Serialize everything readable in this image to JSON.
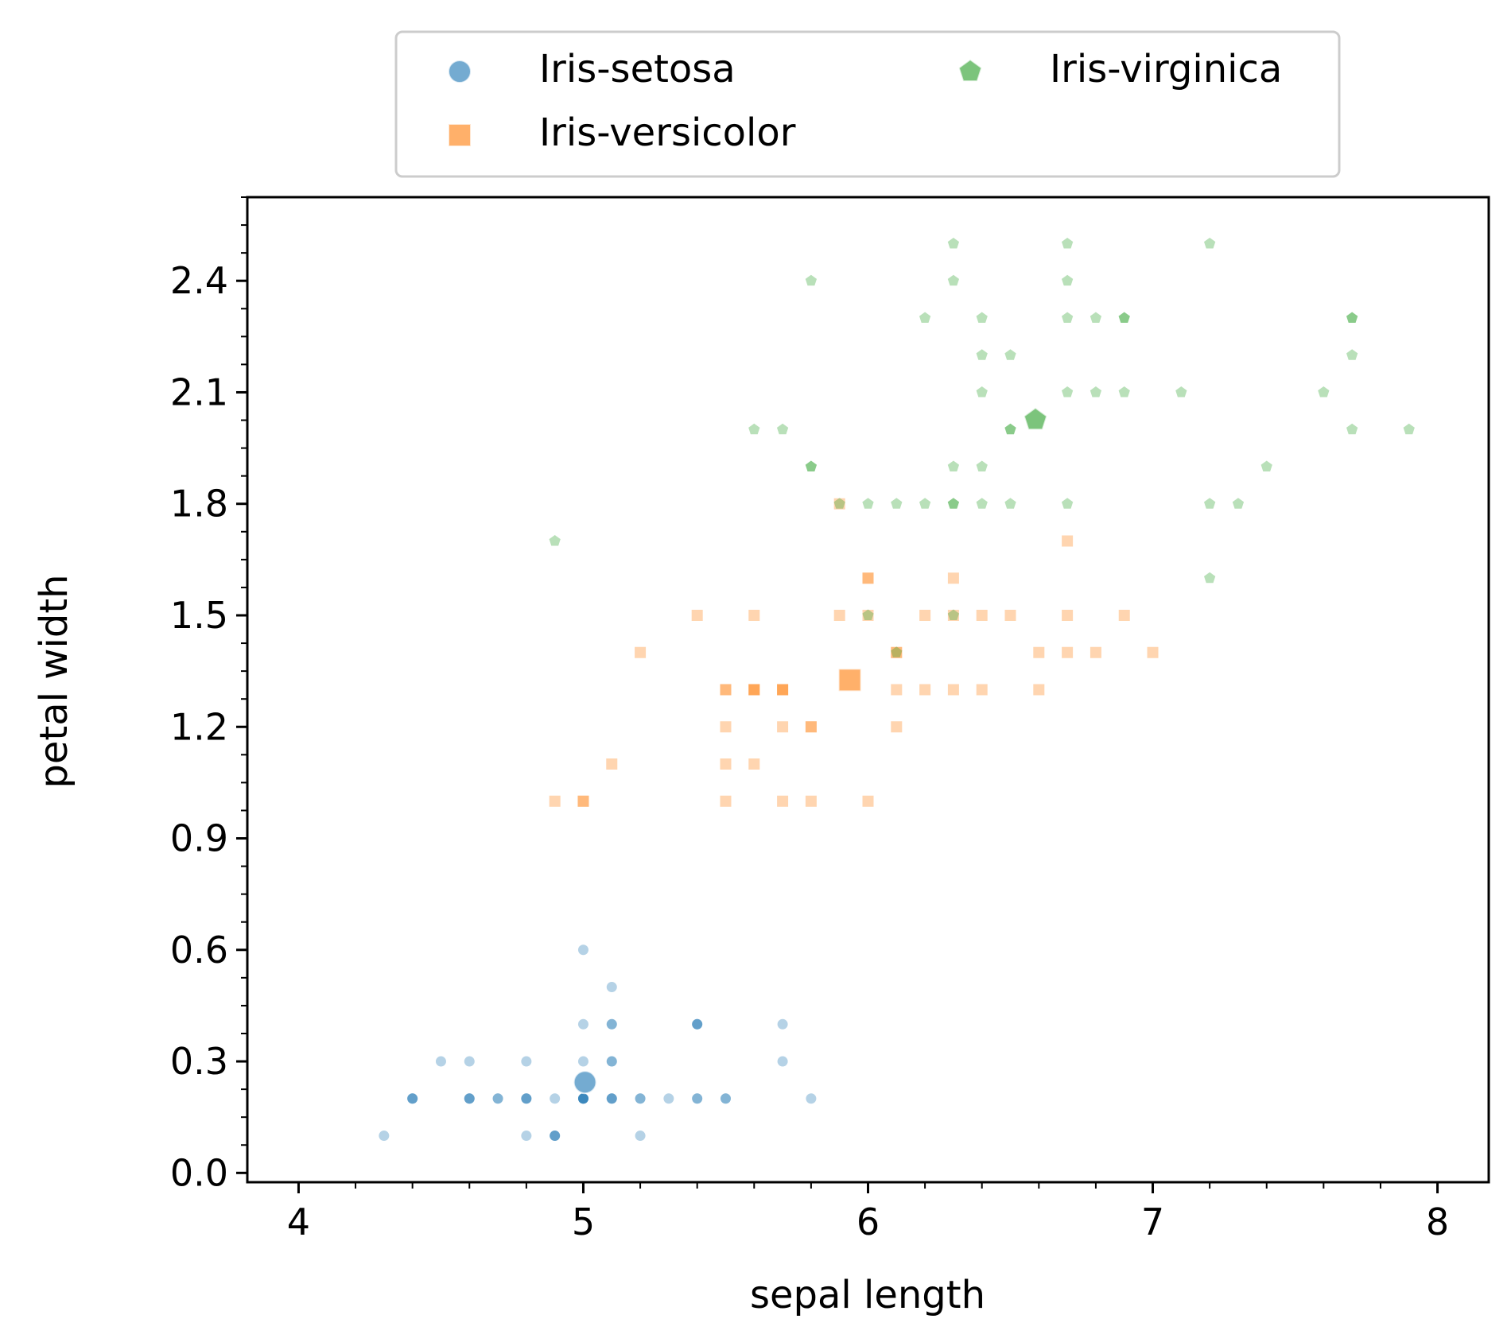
{
  "chart_data": {
    "type": "scatter",
    "title": "",
    "xlabel": "sepal length",
    "ylabel": "petal width",
    "xlim": [
      3.82,
      8.18
    ],
    "ylim": [
      -0.025,
      2.625
    ],
    "xticks": [
      4,
      5,
      6,
      7,
      8
    ],
    "xtick_labels": [
      "4",
      "5",
      "6",
      "7",
      "8"
    ],
    "yticks": [
      0.0,
      0.3,
      0.6,
      0.9,
      1.2,
      1.5,
      1.8,
      2.1,
      2.4
    ],
    "ytick_labels": [
      "0.0",
      "0.3",
      "0.6",
      "0.9",
      "1.2",
      "1.5",
      "1.8",
      "2.1",
      "2.4"
    ],
    "x_minor_step": 0.2,
    "y_minor_step": 0.075,
    "grid": false,
    "legend": {
      "placement": "top-center-outside",
      "columns": 2
    },
    "series": [
      {
        "name": "Iris-setosa",
        "color": "#1f77b4",
        "marker": "circle",
        "points": [
          [
            5.1,
            0.2
          ],
          [
            4.9,
            0.2
          ],
          [
            4.7,
            0.2
          ],
          [
            4.6,
            0.2
          ],
          [
            5.0,
            0.2
          ],
          [
            5.4,
            0.4
          ],
          [
            4.6,
            0.3
          ],
          [
            5.0,
            0.2
          ],
          [
            4.4,
            0.2
          ],
          [
            4.9,
            0.1
          ],
          [
            5.4,
            0.2
          ],
          [
            4.8,
            0.2
          ],
          [
            4.8,
            0.1
          ],
          [
            4.3,
            0.1
          ],
          [
            5.8,
            0.2
          ],
          [
            5.7,
            0.4
          ],
          [
            5.4,
            0.4
          ],
          [
            5.1,
            0.3
          ],
          [
            5.7,
            0.3
          ],
          [
            5.1,
            0.3
          ],
          [
            5.4,
            0.2
          ],
          [
            5.1,
            0.4
          ],
          [
            4.6,
            0.2
          ],
          [
            5.1,
            0.5
          ],
          [
            4.8,
            0.2
          ],
          [
            5.0,
            0.2
          ],
          [
            5.0,
            0.4
          ],
          [
            5.2,
            0.2
          ],
          [
            5.2,
            0.2
          ],
          [
            4.7,
            0.2
          ],
          [
            4.8,
            0.2
          ],
          [
            5.4,
            0.4
          ],
          [
            5.2,
            0.1
          ],
          [
            5.5,
            0.2
          ],
          [
            4.9,
            0.1
          ],
          [
            5.0,
            0.2
          ],
          [
            5.5,
            0.2
          ],
          [
            4.9,
            0.1
          ],
          [
            4.4,
            0.2
          ],
          [
            5.1,
            0.2
          ],
          [
            5.0,
            0.3
          ],
          [
            4.5,
            0.3
          ],
          [
            4.4,
            0.2
          ],
          [
            5.0,
            0.6
          ],
          [
            5.1,
            0.4
          ],
          [
            4.8,
            0.3
          ],
          [
            5.1,
            0.2
          ],
          [
            4.6,
            0.2
          ],
          [
            5.3,
            0.2
          ],
          [
            5.0,
            0.2
          ]
        ],
        "mean": [
          5.006,
          0.244
        ]
      },
      {
        "name": "Iris-versicolor",
        "color": "#ff7f0e",
        "marker": "square",
        "points": [
          [
            7.0,
            1.4
          ],
          [
            6.4,
            1.5
          ],
          [
            6.9,
            1.5
          ],
          [
            5.5,
            1.3
          ],
          [
            6.5,
            1.5
          ],
          [
            5.7,
            1.3
          ],
          [
            6.3,
            1.6
          ],
          [
            4.9,
            1.0
          ],
          [
            6.6,
            1.3
          ],
          [
            5.2,
            1.4
          ],
          [
            5.0,
            1.0
          ],
          [
            5.9,
            1.5
          ],
          [
            6.0,
            1.0
          ],
          [
            6.1,
            1.4
          ],
          [
            5.6,
            1.3
          ],
          [
            6.7,
            1.4
          ],
          [
            5.6,
            1.5
          ],
          [
            5.8,
            1.0
          ],
          [
            6.2,
            1.5
          ],
          [
            5.6,
            1.1
          ],
          [
            5.9,
            1.8
          ],
          [
            6.1,
            1.3
          ],
          [
            6.3,
            1.5
          ],
          [
            6.1,
            1.2
          ],
          [
            6.4,
            1.3
          ],
          [
            6.6,
            1.4
          ],
          [
            6.8,
            1.4
          ],
          [
            6.7,
            1.7
          ],
          [
            6.0,
            1.5
          ],
          [
            5.7,
            1.0
          ],
          [
            5.5,
            1.1
          ],
          [
            5.5,
            1.0
          ],
          [
            5.8,
            1.2
          ],
          [
            6.0,
            1.6
          ],
          [
            5.4,
            1.5
          ],
          [
            6.0,
            1.6
          ],
          [
            6.7,
            1.5
          ],
          [
            6.3,
            1.3
          ],
          [
            5.6,
            1.3
          ],
          [
            5.5,
            1.3
          ],
          [
            5.5,
            1.2
          ],
          [
            6.1,
            1.4
          ],
          [
            5.8,
            1.2
          ],
          [
            5.0,
            1.0
          ],
          [
            5.6,
            1.3
          ],
          [
            5.7,
            1.2
          ],
          [
            5.7,
            1.3
          ],
          [
            6.2,
            1.3
          ],
          [
            5.1,
            1.1
          ],
          [
            5.7,
            1.3
          ]
        ],
        "mean": [
          5.936,
          1.326
        ]
      },
      {
        "name": "Iris-virginica",
        "color": "#2ca02c",
        "marker": "pentagon",
        "points": [
          [
            6.3,
            2.5
          ],
          [
            5.8,
            1.9
          ],
          [
            7.1,
            2.1
          ],
          [
            6.3,
            1.8
          ],
          [
            6.5,
            2.2
          ],
          [
            7.6,
            2.1
          ],
          [
            4.9,
            1.7
          ],
          [
            7.3,
            1.8
          ],
          [
            6.7,
            1.8
          ],
          [
            7.2,
            2.5
          ],
          [
            6.5,
            2.0
          ],
          [
            6.4,
            1.9
          ],
          [
            6.8,
            2.1
          ],
          [
            5.7,
            2.0
          ],
          [
            5.8,
            2.4
          ],
          [
            6.4,
            2.3
          ],
          [
            6.5,
            1.8
          ],
          [
            7.7,
            2.2
          ],
          [
            7.7,
            2.3
          ],
          [
            6.0,
            1.5
          ],
          [
            6.9,
            2.3
          ],
          [
            5.6,
            2.0
          ],
          [
            7.7,
            2.0
          ],
          [
            6.3,
            1.8
          ],
          [
            6.7,
            2.1
          ],
          [
            7.2,
            1.8
          ],
          [
            6.2,
            1.8
          ],
          [
            6.1,
            1.8
          ],
          [
            6.4,
            2.1
          ],
          [
            7.2,
            1.6
          ],
          [
            7.4,
            1.9
          ],
          [
            7.9,
            2.0
          ],
          [
            6.4,
            2.2
          ],
          [
            6.3,
            1.5
          ],
          [
            6.1,
            1.4
          ],
          [
            7.7,
            2.3
          ],
          [
            6.3,
            2.4
          ],
          [
            6.4,
            1.8
          ],
          [
            6.0,
            1.8
          ],
          [
            6.9,
            2.1
          ],
          [
            6.7,
            2.4
          ],
          [
            6.9,
            2.3
          ],
          [
            5.8,
            1.9
          ],
          [
            6.8,
            2.3
          ],
          [
            6.7,
            2.5
          ],
          [
            6.7,
            2.3
          ],
          [
            6.3,
            1.9
          ],
          [
            6.5,
            2.0
          ],
          [
            6.2,
            2.3
          ],
          [
            5.9,
            1.8
          ]
        ],
        "mean": [
          6.588,
          2.026
        ]
      }
    ]
  }
}
